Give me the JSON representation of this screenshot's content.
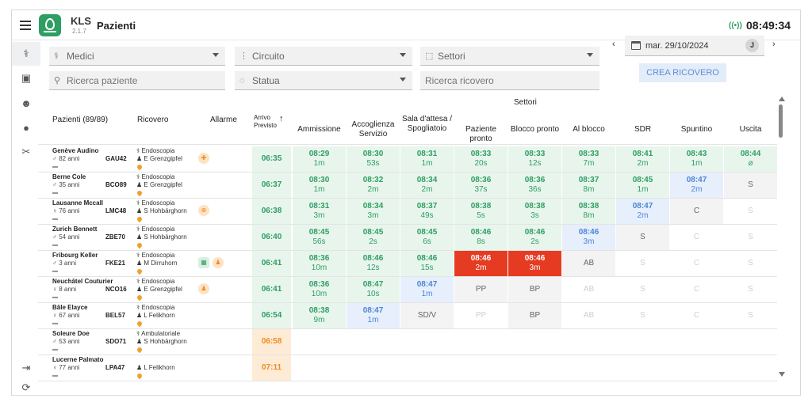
{
  "app": {
    "name": "KLS",
    "version": "2.1.7",
    "page_title": "Pazienti",
    "clock": "08:49:34",
    "signal_icon": "signal-broadcast-icon"
  },
  "sidebar": {
    "items": [
      {
        "icon": "doctor-icon",
        "active": true,
        "glyph": "⚕"
      },
      {
        "icon": "briefcase-icon",
        "active": false,
        "glyph": "▣"
      },
      {
        "icon": "group-icon",
        "active": false,
        "glyph": "☻"
      },
      {
        "icon": "location-pin-icon",
        "active": false,
        "glyph": "●"
      },
      {
        "icon": "tools-icon",
        "active": false,
        "glyph": "✂"
      }
    ],
    "logout_icon": "logout-icon",
    "refresh_icon": "refresh-icon"
  },
  "filters": {
    "medici": "Medici",
    "circuito": "Circuito",
    "settori": "Settori",
    "ricerca_paziente": "Ricerca paziente",
    "statua": "Statua",
    "ricerca_ricovero": "Ricerca ricovero",
    "date": "mar. 29/10/2024",
    "user_initial": "J",
    "create_button": "CREA RICOVERO"
  },
  "table": {
    "col_pazienti": "Pazienti (89/89)",
    "col_ricovero": "Ricovero",
    "col_allarme": "Allarme",
    "col_arrivo": "Arrivo Previsto",
    "settori_label": "Settori",
    "sectors": [
      "Ammissione",
      "Accoglienza Servizio",
      "Sala d'attesa / Spogliatoio",
      "Paziente pronto",
      "Blocco pronto",
      "Al blocco",
      "SDR",
      "Spuntino",
      "Uscita"
    ],
    "rows": [
      {
        "name": "Genève Audino",
        "sex": "♂",
        "age": "82 anni",
        "code": "GAU42",
        "type": "Endoscopia",
        "doctor": "E Grenzgipfel",
        "alarms": [
          "medical-alert-icon"
        ],
        "arrival": "06:35",
        "arrival_color": "green",
        "cells": [
          {
            "s": "green",
            "t": "08:29",
            "d": "1m"
          },
          {
            "s": "green",
            "t": "08:30",
            "d": "53s"
          },
          {
            "s": "green",
            "t": "08:31",
            "d": "1m"
          },
          {
            "s": "green",
            "t": "08:33",
            "d": "20s"
          },
          {
            "s": "green",
            "t": "08:33",
            "d": "12s"
          },
          {
            "s": "green",
            "t": "08:33",
            "d": "7m"
          },
          {
            "s": "green",
            "t": "08:41",
            "d": "2m"
          },
          {
            "s": "green",
            "t": "08:43",
            "d": "1m"
          },
          {
            "s": "green",
            "t": "08:44",
            "d": "ø"
          }
        ]
      },
      {
        "name": "Berne Cole",
        "sex": "♂",
        "age": "35 anni",
        "code": "BCO89",
        "type": "Endoscopia",
        "doctor": "E Grenzgipfel",
        "alarms": [],
        "arrival": "06:37",
        "arrival_color": "green",
        "cells": [
          {
            "s": "green",
            "t": "08:30",
            "d": "1m"
          },
          {
            "s": "green",
            "t": "08:32",
            "d": "2m"
          },
          {
            "s": "green",
            "t": "08:34",
            "d": "2m"
          },
          {
            "s": "green",
            "t": "08:36",
            "d": "37s"
          },
          {
            "s": "green",
            "t": "08:36",
            "d": "36s"
          },
          {
            "s": "green",
            "t": "08:37",
            "d": "8m"
          },
          {
            "s": "green",
            "t": "08:45",
            "d": "1m"
          },
          {
            "s": "blue",
            "t": "08:47",
            "d": "2m"
          },
          {
            "s": "grey",
            "l": "S"
          }
        ]
      },
      {
        "name": "Lausanne Mccall",
        "sex": "♀",
        "age": "76 anni",
        "code": "LMC48",
        "type": "Endoscopia",
        "doctor": "S Hohbärghorn",
        "alarms": [
          "target-icon"
        ],
        "arrival": "06:38",
        "arrival_color": "green",
        "cells": [
          {
            "s": "green",
            "t": "08:31",
            "d": "3m"
          },
          {
            "s": "green",
            "t": "08:34",
            "d": "3m"
          },
          {
            "s": "green",
            "t": "08:37",
            "d": "49s"
          },
          {
            "s": "green",
            "t": "08:38",
            "d": "5s"
          },
          {
            "s": "green",
            "t": "08:38",
            "d": "3s"
          },
          {
            "s": "green",
            "t": "08:38",
            "d": "8m"
          },
          {
            "s": "blue",
            "t": "08:47",
            "d": "2m"
          },
          {
            "s": "grey",
            "l": "C"
          },
          {
            "s": "lgrey",
            "l": "S"
          }
        ]
      },
      {
        "name": "Zurich Bennett",
        "sex": "♂",
        "age": "54 anni",
        "code": "ZBE70",
        "type": "Endoscopia",
        "doctor": "S Hohbärghorn",
        "alarms": [],
        "arrival": "06:40",
        "arrival_color": "green",
        "cells": [
          {
            "s": "green",
            "t": "08:45",
            "d": "56s"
          },
          {
            "s": "green",
            "t": "08:45",
            "d": "2s"
          },
          {
            "s": "green",
            "t": "08:45",
            "d": "6s"
          },
          {
            "s": "green",
            "t": "08:46",
            "d": "8s"
          },
          {
            "s": "green",
            "t": "08:46",
            "d": "2s"
          },
          {
            "s": "blue",
            "t": "08:46",
            "d": "3m"
          },
          {
            "s": "grey",
            "l": "S"
          },
          {
            "s": "lgrey",
            "l": "C"
          },
          {
            "s": "lgrey",
            "l": "S"
          }
        ]
      },
      {
        "name": "Fribourg Keller",
        "sex": "♂",
        "age": "3 anni",
        "code": "FKE21",
        "type": "Endoscopia",
        "doctor": "M Dirruhorn",
        "alarms": [
          "calculator-icon",
          "person-alert-icon"
        ],
        "arrival": "06:41",
        "arrival_color": "green",
        "cells": [
          {
            "s": "green",
            "t": "08:36",
            "d": "10m"
          },
          {
            "s": "green",
            "t": "08:46",
            "d": "12s"
          },
          {
            "s": "green",
            "t": "08:46",
            "d": "15s"
          },
          {
            "s": "red",
            "t": "08:46",
            "d": "2m"
          },
          {
            "s": "red",
            "t": "08:46",
            "d": "3m"
          },
          {
            "s": "grey",
            "l": "AB"
          },
          {
            "s": "lgrey",
            "l": "S"
          },
          {
            "s": "lgrey",
            "l": "C"
          },
          {
            "s": "lgrey",
            "l": "S"
          }
        ]
      },
      {
        "name": "Neuchâtel Couturier",
        "sex": "♀",
        "age": "8 anni",
        "code": "NCO16",
        "type": "Endoscopia",
        "doctor": "E Grenzgipfel",
        "alarms": [
          "person-alert-icon"
        ],
        "arrival": "06:41",
        "arrival_color": "green",
        "cells": [
          {
            "s": "green",
            "t": "08:36",
            "d": "10m"
          },
          {
            "s": "green",
            "t": "08:47",
            "d": "10s"
          },
          {
            "s": "blue",
            "t": "08:47",
            "d": "1m"
          },
          {
            "s": "grey",
            "l": "PP"
          },
          {
            "s": "grey",
            "l": "BP"
          },
          {
            "s": "lgrey",
            "l": "AB"
          },
          {
            "s": "lgrey",
            "l": "S"
          },
          {
            "s": "lgrey",
            "l": "C"
          },
          {
            "s": "lgrey",
            "l": "S"
          }
        ]
      },
      {
        "name": "Bâle Elayce",
        "sex": "♀",
        "age": "67 anni",
        "code": "BEL57",
        "type": "Endoscopia",
        "doctor": "L Felikhorn",
        "alarms": [],
        "arrival": "06:54",
        "arrival_color": "green",
        "cells": [
          {
            "s": "green",
            "t": "08:38",
            "d": "9m"
          },
          {
            "s": "blue",
            "t": "08:47",
            "d": "1m"
          },
          {
            "s": "grey",
            "l": "SD/V"
          },
          {
            "s": "lgrey",
            "l": "PP"
          },
          {
            "s": "grey",
            "l": "BP"
          },
          {
            "s": "lgrey",
            "l": "AB"
          },
          {
            "s": "lgrey",
            "l": "S"
          },
          {
            "s": "lgrey",
            "l": "C"
          },
          {
            "s": "lgrey",
            "l": "S"
          }
        ]
      },
      {
        "name": "Soleure Doe",
        "sex": "♂",
        "age": "53 anni",
        "code": "SDO71",
        "type": "Ambulatoriale",
        "doctor": "S Hohbärghorn",
        "alarms": [],
        "arrival": "06:58",
        "arrival_color": "orange",
        "cells": []
      },
      {
        "name": "Lucerne Palmato",
        "sex": "♀",
        "age": "77 anni",
        "code": "LPA47",
        "type": "",
        "doctor": "L Felikhorn",
        "alarms": [],
        "arrival": "07:11",
        "arrival_color": "orange",
        "cells": []
      }
    ]
  }
}
